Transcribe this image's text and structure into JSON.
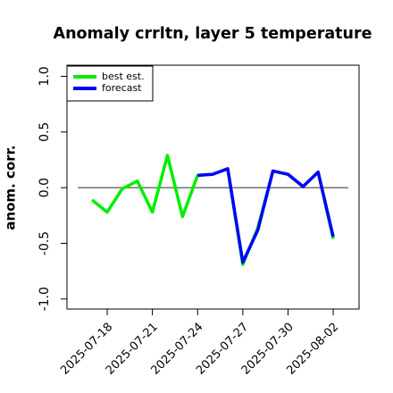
{
  "chart_data": {
    "type": "line",
    "title": "Anomaly crrltn, layer 5 temperature",
    "ylabel": "anom. corr.",
    "x": [
      "2025-07-17",
      "2025-07-18",
      "2025-07-19",
      "2025-07-20",
      "2025-07-21",
      "2025-07-22",
      "2025-07-23",
      "2025-07-24",
      "2025-07-25",
      "2025-07-26",
      "2025-07-27",
      "2025-07-28",
      "2025-07-29",
      "2025-07-30",
      "2025-07-31",
      "2025-08-01",
      "2025-08-02"
    ],
    "series": [
      {
        "name": "best est.",
        "color": "#00ee00",
        "values": [
          -0.11,
          -0.22,
          -0.01,
          0.06,
          -0.22,
          0.29,
          -0.26,
          0.11,
          0.12,
          0.17,
          -0.69,
          -0.36,
          0.15,
          0.12,
          0.01,
          0.14,
          -0.46
        ]
      },
      {
        "name": "forecast",
        "color": "#0000ff",
        "values": [
          null,
          null,
          null,
          null,
          null,
          null,
          null,
          0.11,
          0.12,
          0.17,
          -0.67,
          -0.38,
          0.15,
          0.12,
          0.01,
          0.14,
          -0.44
        ]
      }
    ],
    "xlim": [
      "2025-07-15",
      "2025-08-04"
    ],
    "xticks": [
      "2025-07-18",
      "2025-07-21",
      "2025-07-24",
      "2025-07-27",
      "2025-07-30",
      "2025-08-02"
    ],
    "xtick_colors": [
      "#000000",
      "#000000",
      "#228b22",
      "#000000",
      "#000000",
      "#000000"
    ],
    "ylim": [
      -1.09,
      1.1
    ],
    "yticks": [
      {
        "value": -1,
        "label": "-1.0"
      },
      {
        "value": -0.5,
        "label": "-0.5"
      },
      {
        "value": 0,
        "label": "0.0"
      },
      {
        "value": 0.5,
        "label": "0.5"
      },
      {
        "value": 1,
        "label": "1.0"
      }
    ],
    "hline": 0,
    "legend": "top-left"
  }
}
